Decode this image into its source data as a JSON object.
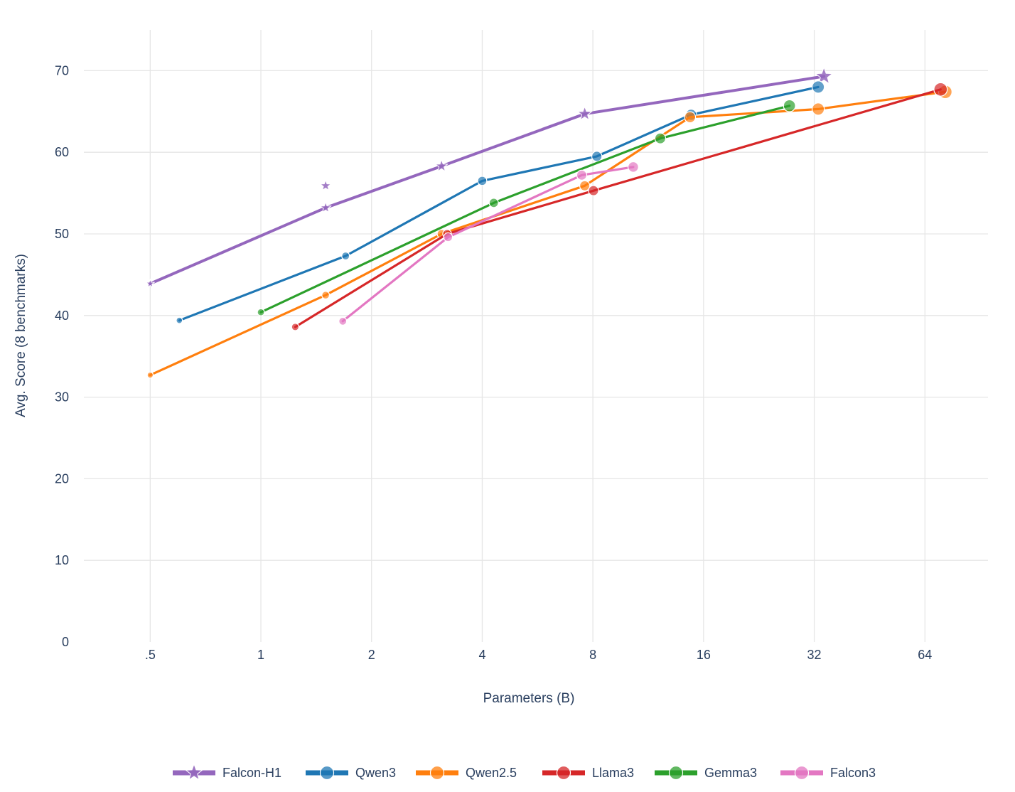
{
  "chart_data": {
    "type": "line",
    "title": "",
    "xlabel": "Parameters (B)",
    "ylabel": "Avg. Score (8 benchmarks)",
    "x_scale": "log2",
    "xlim": [
      0.33,
      95
    ],
    "ylim": [
      0,
      75
    ],
    "x_ticks": [
      {
        "value": 0.5,
        "label": ".5"
      },
      {
        "value": 1,
        "label": "1"
      },
      {
        "value": 2,
        "label": "2"
      },
      {
        "value": 4,
        "label": "4"
      },
      {
        "value": 8,
        "label": "8"
      },
      {
        "value": 16,
        "label": "16"
      },
      {
        "value": 32,
        "label": "32"
      },
      {
        "value": 64,
        "label": "64"
      }
    ],
    "y_ticks": [
      {
        "value": 0,
        "label": "0"
      },
      {
        "value": 10,
        "label": "10"
      },
      {
        "value": 20,
        "label": "20"
      },
      {
        "value": 30,
        "label": "30"
      },
      {
        "value": 40,
        "label": "40"
      },
      {
        "value": 50,
        "label": "50"
      },
      {
        "value": 60,
        "label": "60"
      },
      {
        "value": 70,
        "label": "70"
      }
    ],
    "grid": true,
    "legend_position": "bottom-center",
    "series": [
      {
        "name": "Falcon-H1",
        "color": "#9467bd",
        "marker": "star",
        "line_points": [
          {
            "x": 0.5,
            "y": 43.9
          },
          {
            "x": 1.5,
            "y": 53.2
          },
          {
            "x": 3.1,
            "y": 58.3
          },
          {
            "x": 7.6,
            "y": 64.7
          },
          {
            "x": 34,
            "y": 69.3
          }
        ],
        "extra_points": [
          {
            "x": 1.5,
            "y": 55.9
          }
        ]
      },
      {
        "name": "Qwen3",
        "color": "#1f77b4",
        "marker": "circle",
        "line_points": [
          {
            "x": 0.6,
            "y": 39.4
          },
          {
            "x": 1.7,
            "y": 47.3
          },
          {
            "x": 4,
            "y": 56.5
          },
          {
            "x": 8.2,
            "y": 59.5
          },
          {
            "x": 14.8,
            "y": 64.6
          },
          {
            "x": 32.8,
            "y": 68.0
          }
        ],
        "extra_points": []
      },
      {
        "name": "Qwen2.5",
        "color": "#ff7f0e",
        "marker": "circle",
        "line_points": [
          {
            "x": 0.5,
            "y": 32.7
          },
          {
            "x": 1.5,
            "y": 42.5
          },
          {
            "x": 3.1,
            "y": 50.0
          },
          {
            "x": 7.6,
            "y": 55.9
          },
          {
            "x": 14.7,
            "y": 64.3
          },
          {
            "x": 32.8,
            "y": 65.3
          },
          {
            "x": 72.7,
            "y": 67.4
          }
        ],
        "extra_points": []
      },
      {
        "name": "Llama3",
        "color": "#d62728",
        "marker": "circle",
        "line_points": [
          {
            "x": 1.24,
            "y": 38.6
          },
          {
            "x": 3.21,
            "y": 50.0
          },
          {
            "x": 8.03,
            "y": 55.3
          },
          {
            "x": 70.6,
            "y": 67.7
          }
        ],
        "extra_points": []
      },
      {
        "name": "Gemma3",
        "color": "#2ca02c",
        "marker": "circle",
        "line_points": [
          {
            "x": 1.0,
            "y": 40.4
          },
          {
            "x": 4.3,
            "y": 53.8
          },
          {
            "x": 12.2,
            "y": 61.7
          },
          {
            "x": 27.4,
            "y": 65.7
          }
        ],
        "extra_points": []
      },
      {
        "name": "Falcon3",
        "color": "#e377c2",
        "marker": "circle",
        "line_points": [
          {
            "x": 1.67,
            "y": 39.3
          },
          {
            "x": 3.23,
            "y": 49.6
          },
          {
            "x": 7.46,
            "y": 57.2
          },
          {
            "x": 10.3,
            "y": 58.2
          }
        ],
        "extra_points": []
      }
    ]
  }
}
